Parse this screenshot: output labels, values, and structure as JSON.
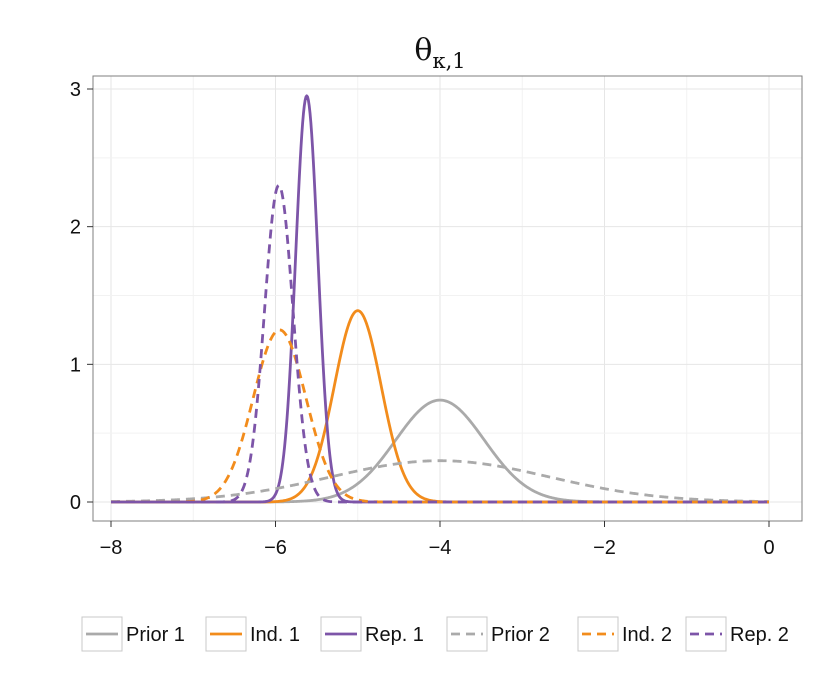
{
  "chart_data": {
    "type": "line",
    "title": "θ",
    "title_subscript": "κ,1",
    "xlabel": "",
    "ylabel": "",
    "xlim": [
      -8,
      0
    ],
    "ylim": [
      0,
      3
    ],
    "x_ticks": [
      -8,
      -6,
      -4,
      -2,
      0
    ],
    "x_tick_labels": [
      "−8",
      "−6",
      "−4",
      "−2",
      "0"
    ],
    "y_ticks": [
      0,
      1,
      2,
      3
    ],
    "y_tick_labels": [
      "0",
      "1",
      "2",
      "3"
    ],
    "grid": true,
    "legend_position": "bottom",
    "series": [
      {
        "name": "Prior 1",
        "color": "#aaaaaa",
        "dash": "solid",
        "distribution": "normal",
        "mean": -4.0,
        "sd": 0.54,
        "peak": 0.74
      },
      {
        "name": "Ind. 1",
        "color": "#f28c1c",
        "dash": "solid",
        "distribution": "normal",
        "mean": -5.0,
        "sd": 0.285,
        "peak": 1.39
      },
      {
        "name": "Rep. 1",
        "color": "#7d55a8",
        "dash": "solid",
        "distribution": "normal",
        "mean": -5.62,
        "sd": 0.135,
        "peak": 2.95
      },
      {
        "name": "Prior 2",
        "color": "#aaaaaa",
        "dash": "dashed",
        "distribution": "normal",
        "mean": -4.0,
        "sd": 1.33,
        "peak": 0.3
      },
      {
        "name": "Ind. 2",
        "color": "#f28c1c",
        "dash": "dashed",
        "distribution": "normal",
        "mean": -5.95,
        "sd": 0.32,
        "peak": 1.25
      },
      {
        "name": "Rep. 2",
        "color": "#7d55a8",
        "dash": "dashed",
        "distribution": "normal",
        "mean": -5.96,
        "sd": 0.173,
        "peak": 2.3
      }
    ]
  }
}
